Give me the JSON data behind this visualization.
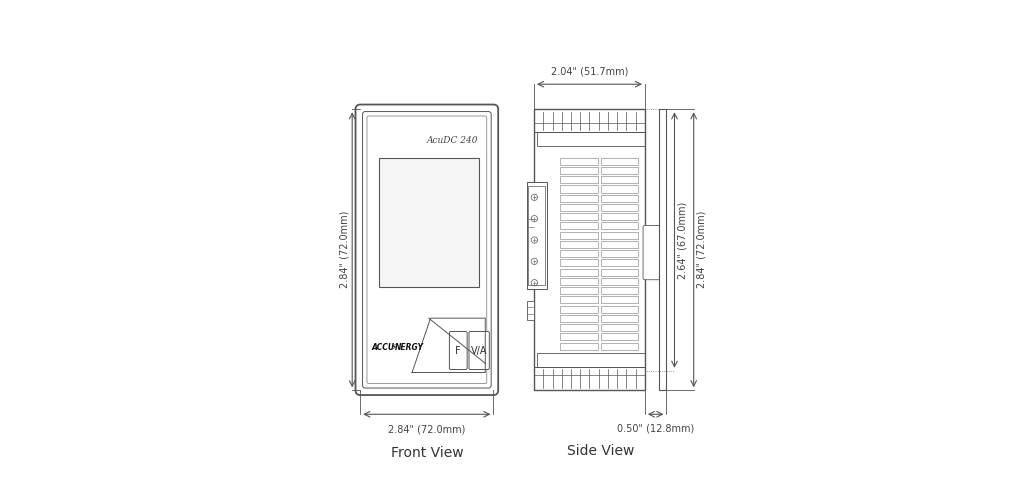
{
  "bg_color": "#ffffff",
  "line_color": "#555555",
  "dim_color": "#555555",
  "text_color": "#444444",
  "title_color": "#333333",
  "front_view_label": "Front View",
  "side_view_label": "Side View",
  "model_label": "AcuDC 240",
  "front_width_label": "2.84\" (72.0mm)",
  "front_height_label": "2.84\" (72.0mm)",
  "side_width_label": "2.04\" (51.7mm)",
  "side_height1_label": "2.64\" (67.0mm)",
  "side_height2_label": "2.84\" (72.0mm)",
  "side_depth_label": "0.50\" (12.8mm)"
}
